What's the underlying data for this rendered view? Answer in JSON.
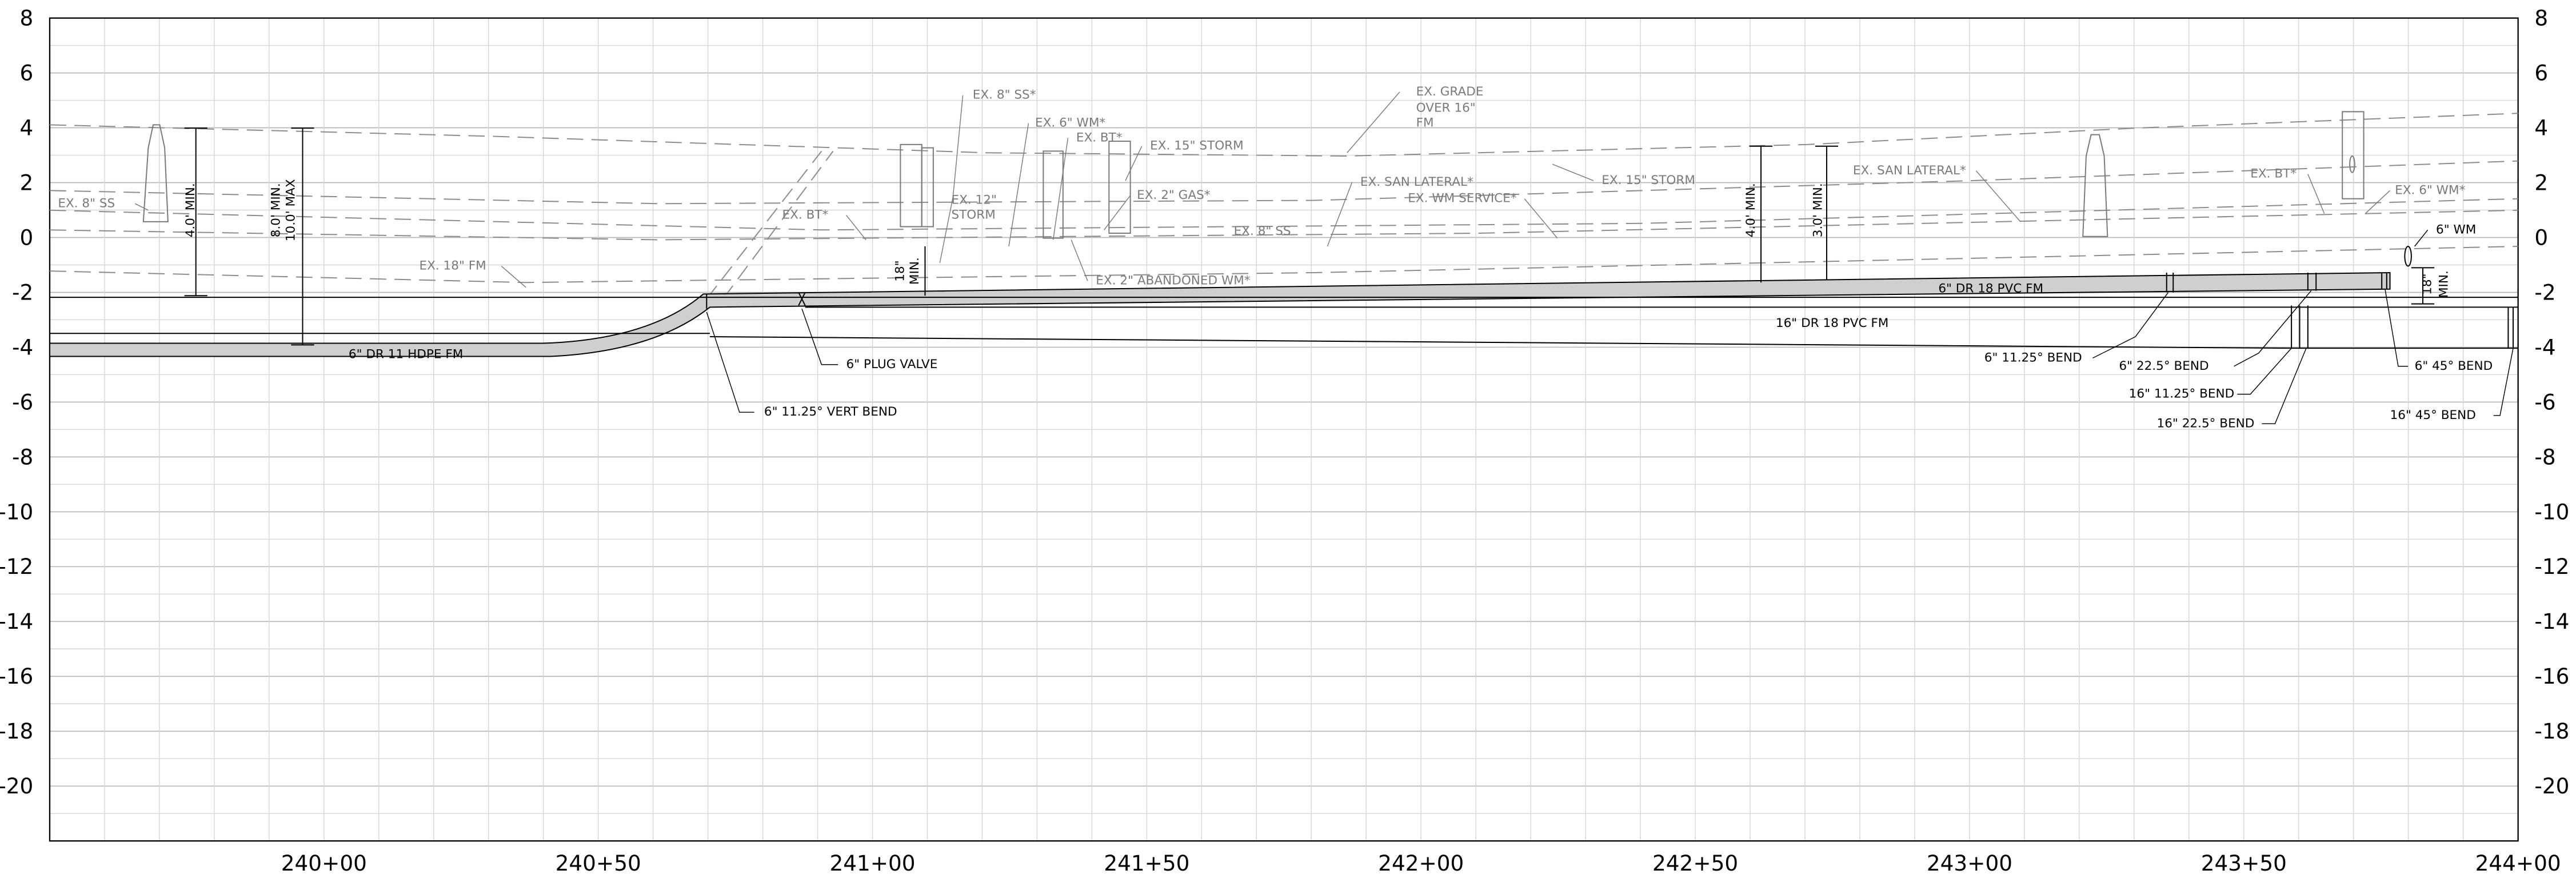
{
  "left_axis": [
    "8",
    "6",
    "4",
    "2",
    "0",
    "-2",
    "-4",
    "-6",
    "-8",
    "-10",
    "-12",
    "-14",
    "-16",
    "-18",
    "-20"
  ],
  "right_axis": [
    "8",
    "6",
    "4",
    "2",
    "0",
    "-2",
    "-4",
    "-6",
    "-8",
    "-10",
    "-12",
    "-14",
    "-16",
    "-18",
    "-20"
  ],
  "stations": [
    "240+00",
    "240+50",
    "241+00",
    "241+50",
    "242+00",
    "242+50",
    "243+00",
    "243+50",
    "244+00"
  ],
  "annotations": [
    {
      "text": "EX. 8\" SS"
    },
    {
      "text": "4.0' MIN."
    },
    {
      "text": "8.0' MIN."
    },
    {
      "text": "10.0' MAX"
    },
    {
      "text": "EX. 18\" FM"
    },
    {
      "text": "6\" DR 11 HDPE FM"
    },
    {
      "text": "6\" 11.25° VERT BEND"
    },
    {
      "text": "6\" PLUG VALVE"
    },
    {
      "text": "EX. BT*"
    },
    {
      "text": "EX. 8\" SS*"
    },
    {
      "text": "EX. 6\" WM*"
    },
    {
      "text": "EX. BT*"
    },
    {
      "text": "EX. 15\" STORM"
    },
    {
      "text": "EX. 12\""
    },
    {
      "text": "STORM"
    },
    {
      "text": "EX. 2\" GAS*"
    },
    {
      "text": "18\""
    },
    {
      "text": "MIN."
    },
    {
      "text": "EX. 2\" ABANDONED WM*"
    },
    {
      "text": "EX. GRADE"
    },
    {
      "text": "OVER 16\""
    },
    {
      "text": "FM"
    },
    {
      "text": "EX. SAN LATERAL*"
    },
    {
      "text": "EX. WM SERVICE*"
    },
    {
      "text": "EX. 8\" SS"
    },
    {
      "text": "EX. 15\" STORM"
    },
    {
      "text": "4.0' MIN."
    },
    {
      "text": "3.0' MIN."
    },
    {
      "text": "EX. SAN LATERAL*"
    },
    {
      "text": "6\" DR 18 PVC FM"
    },
    {
      "text": "16\" DR 18 PVC FM"
    },
    {
      "text": "6\" 11.25° BEND"
    },
    {
      "text": "6\" 22.5° BEND"
    },
    {
      "text": "16\" 11.25° BEND"
    },
    {
      "text": "16\" 22.5° BEND"
    },
    {
      "text": "EX. BT*"
    },
    {
      "text": "EX. 6\" WM*"
    },
    {
      "text": "6\" WM"
    },
    {
      "text": "18\""
    },
    {
      "text": "MIN."
    },
    {
      "text": "6\" 45° BEND"
    },
    {
      "text": "16\" 45° BEND"
    }
  ]
}
